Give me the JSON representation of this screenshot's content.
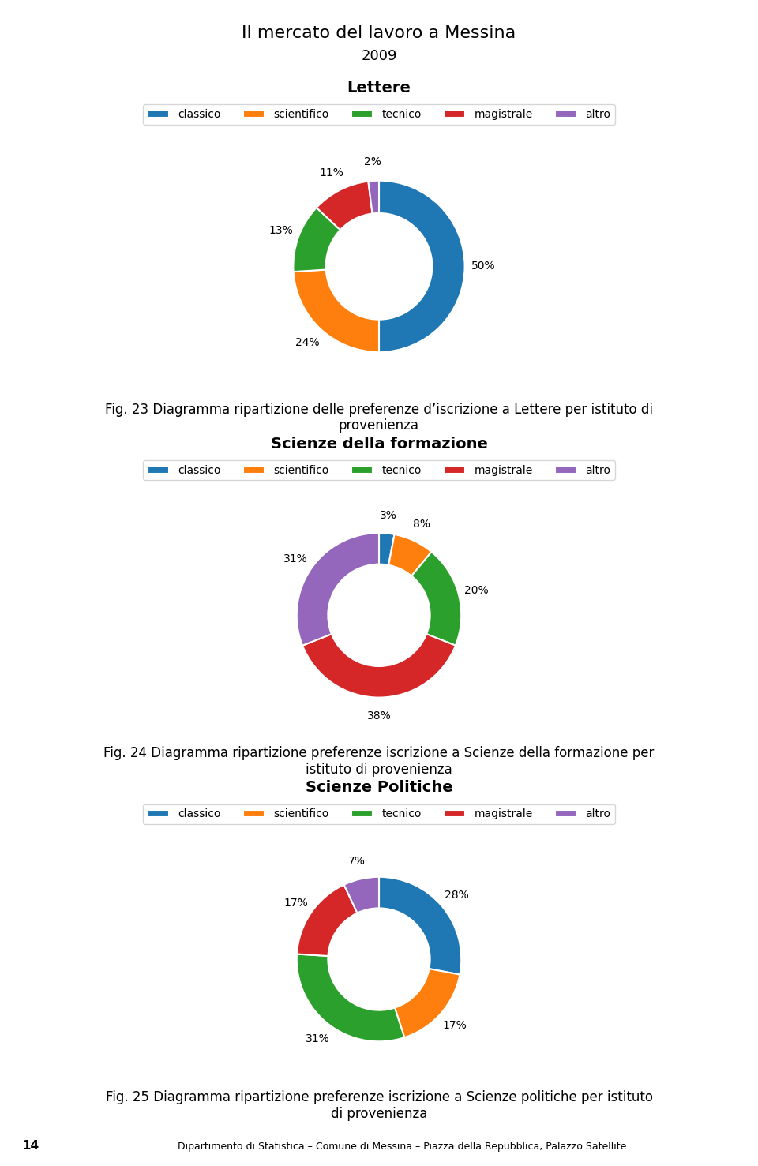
{
  "title": "Il mercato del lavoro a Messina",
  "subtitle": "2009",
  "annotations": [
    "14",
    "Dipartimento di Statistica – Comune di Messina – Piazza della Repubblica, Palazzo Satellite"
  ],
  "chart_data": [
    {
      "type": "pie",
      "title": "Lettere",
      "categories": [
        "classico",
        "scientifico",
        "tecnico",
        "magistrale",
        "altro"
      ],
      "values": [
        50,
        24,
        13,
        11,
        2
      ],
      "value_labels": [
        "50%",
        "24%",
        "13%",
        "11%",
        "2%"
      ],
      "data_labels": true,
      "legend": "upper center",
      "annotations": [
        "Fig. 23 Diagramma ripartizione delle preferenze d’iscrizione a Lettere per istituto di\nprovenienza"
      ]
    },
    {
      "type": "pie",
      "title": "Scienze della formazione",
      "categories": [
        "classico",
        "scientifico",
        "tecnico",
        "magistrale",
        "altro"
      ],
      "values": [
        3,
        8,
        20,
        38,
        31
      ],
      "value_labels": [
        "3%",
        "8%",
        "20%",
        "38%",
        "31%"
      ],
      "data_labels": true,
      "legend": "upper center",
      "annotations": [
        "Fig. 24 Diagramma ripartizione preferenze iscrizione a Scienze della formazione per\nistituto di provenienza"
      ]
    },
    {
      "type": "pie",
      "title": "Scienze Politiche",
      "categories": [
        "classico",
        "scientifico",
        "tecnico",
        "magistrale",
        "altro"
      ],
      "values": [
        28,
        17,
        31,
        17,
        7
      ],
      "value_labels": [
        "28%",
        "17%",
        "31%",
        "17%",
        "7%"
      ],
      "data_labels": true,
      "legend": "upper center",
      "annotations": [
        "Fig. 25 Diagramma ripartizione preferenze iscrizione a Scienze politiche per istituto\ndi provenienza"
      ]
    }
  ]
}
